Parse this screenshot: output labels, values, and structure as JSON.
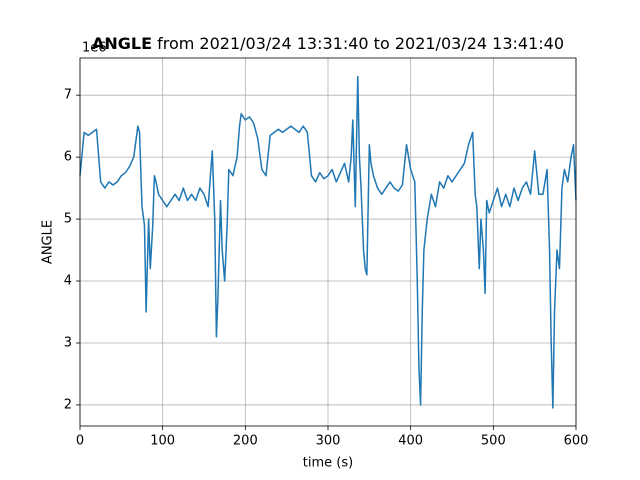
{
  "chart_data": {
    "type": "line",
    "title_bold": "ANGLE",
    "title_rest": "from 2021/03/24 13:31:40 to 2021/03/24 13:41:40",
    "y_offset_text": "1e6",
    "xlabel": "time (s)",
    "ylabel": "ANGLE",
    "x": [
      0,
      5,
      10,
      15,
      20,
      25,
      30,
      35,
      40,
      45,
      50,
      55,
      60,
      65,
      70,
      72,
      75,
      78,
      80,
      83,
      85,
      88,
      90,
      92,
      95,
      100,
      105,
      110,
      115,
      120,
      125,
      130,
      135,
      140,
      145,
      150,
      155,
      160,
      163,
      165,
      167,
      170,
      172,
      175,
      178,
      180,
      185,
      190,
      193,
      195,
      200,
      205,
      210,
      215,
      220,
      225,
      230,
      235,
      240,
      245,
      250,
      255,
      260,
      265,
      270,
      275,
      280,
      285,
      290,
      295,
      300,
      305,
      310,
      315,
      320,
      325,
      328,
      330,
      333,
      336,
      338,
      340,
      343,
      345,
      347,
      350,
      352,
      355,
      360,
      365,
      370,
      375,
      380,
      385,
      390,
      395,
      400,
      405,
      408,
      410,
      412,
      414,
      416,
      420,
      425,
      430,
      435,
      440,
      445,
      450,
      455,
      460,
      465,
      470,
      475,
      478,
      480,
      483,
      485,
      488,
      490,
      492,
      495,
      500,
      505,
      510,
      515,
      520,
      525,
      530,
      535,
      540,
      545,
      550,
      555,
      560,
      565,
      568,
      570,
      572,
      574,
      577,
      580,
      583,
      586,
      590,
      594,
      597,
      600
    ],
    "values": [
      5.7,
      6.4,
      6.35,
      6.4,
      6.45,
      5.6,
      5.5,
      5.6,
      5.55,
      5.6,
      5.7,
      5.75,
      5.85,
      6.0,
      6.5,
      6.4,
      5.2,
      4.9,
      3.5,
      5.0,
      4.2,
      4.9,
      5.7,
      5.6,
      5.4,
      5.3,
      5.2,
      5.3,
      5.4,
      5.3,
      5.5,
      5.3,
      5.4,
      5.3,
      5.5,
      5.4,
      5.2,
      6.1,
      5.0,
      3.1,
      3.8,
      5.3,
      4.5,
      4.0,
      4.9,
      5.8,
      5.7,
      6.0,
      6.5,
      6.7,
      6.6,
      6.65,
      6.55,
      6.3,
      5.8,
      5.7,
      6.35,
      6.4,
      6.45,
      6.4,
      6.45,
      6.5,
      6.45,
      6.4,
      6.5,
      6.4,
      5.7,
      5.6,
      5.75,
      5.65,
      5.7,
      5.8,
      5.6,
      5.75,
      5.9,
      5.6,
      6.0,
      6.6,
      5.2,
      7.3,
      6.0,
      5.5,
      4.5,
      4.2,
      4.1,
      6.2,
      5.9,
      5.7,
      5.5,
      5.4,
      5.5,
      5.6,
      5.5,
      5.45,
      5.55,
      6.2,
      5.8,
      5.6,
      4.0,
      2.6,
      2.0,
      3.5,
      4.5,
      5.0,
      5.4,
      5.2,
      5.6,
      5.5,
      5.7,
      5.6,
      5.7,
      5.8,
      5.9,
      6.2,
      6.4,
      5.4,
      5.2,
      4.2,
      5.0,
      4.5,
      3.8,
      5.3,
      5.1,
      5.3,
      5.5,
      5.2,
      5.4,
      5.2,
      5.5,
      5.3,
      5.5,
      5.6,
      5.4,
      6.1,
      5.4,
      5.4,
      5.8,
      4.5,
      3.0,
      1.95,
      3.5,
      4.5,
      4.2,
      5.5,
      5.8,
      5.6,
      6.0,
      6.2,
      5.3
    ],
    "color": "#1f77b4",
    "xlim": [
      0,
      600
    ],
    "xticks": [
      0,
      100,
      200,
      300,
      400,
      500,
      600
    ],
    "ylim": [
      1.66,
      7.6
    ],
    "yticks": [
      2,
      3,
      4,
      5,
      6,
      7
    ],
    "grid": true
  }
}
